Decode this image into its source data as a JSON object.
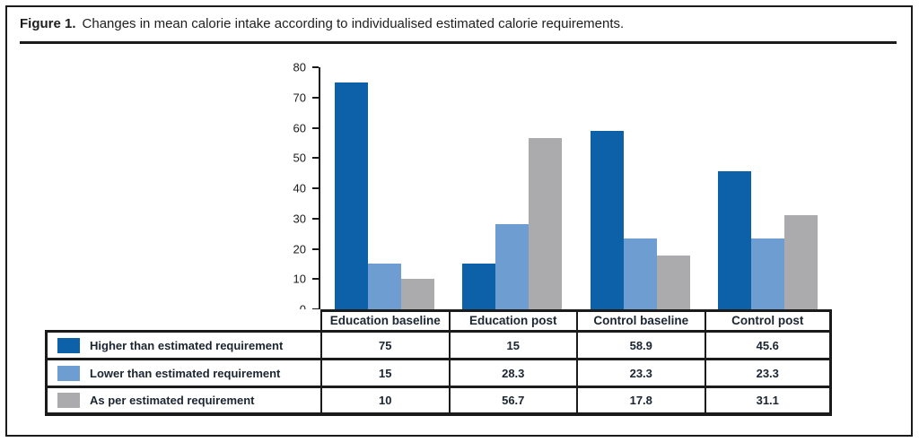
{
  "caption": {
    "label": "Figure 1.",
    "text": "Changes in mean calorie intake according to individualised estimated calorie requirements."
  },
  "chart_data": {
    "type": "bar",
    "title": "Figure 1. Changes in mean calorie intake according to individualised estimated calorie requirements.",
    "xlabel": "",
    "ylabel": "",
    "categories": [
      "Education baseline",
      "Education post",
      "Control baseline",
      "Control post"
    ],
    "series": [
      {
        "name": "Higher than estimated requirement",
        "color": "#0C61A9",
        "values": [
          75,
          15,
          58.9,
          45.6
        ]
      },
      {
        "name": "Lower than estimated requirement",
        "color": "#6E9DD2",
        "values": [
          15,
          28.3,
          23.3,
          23.3
        ]
      },
      {
        "name": "As per estimated requirement",
        "color": "#ABABAD",
        "values": [
          10,
          56.7,
          17.8,
          31.1
        ]
      }
    ],
    "ylim": [
      0,
      80
    ],
    "ytick_step": 10,
    "yticks": [
      0,
      10,
      20,
      30,
      40,
      50,
      60,
      70,
      80
    ],
    "grid": false,
    "legend_position": "table-below-with-values",
    "colors": {
      "border": "#1b1b1b",
      "text": "#1b2531"
    }
  }
}
